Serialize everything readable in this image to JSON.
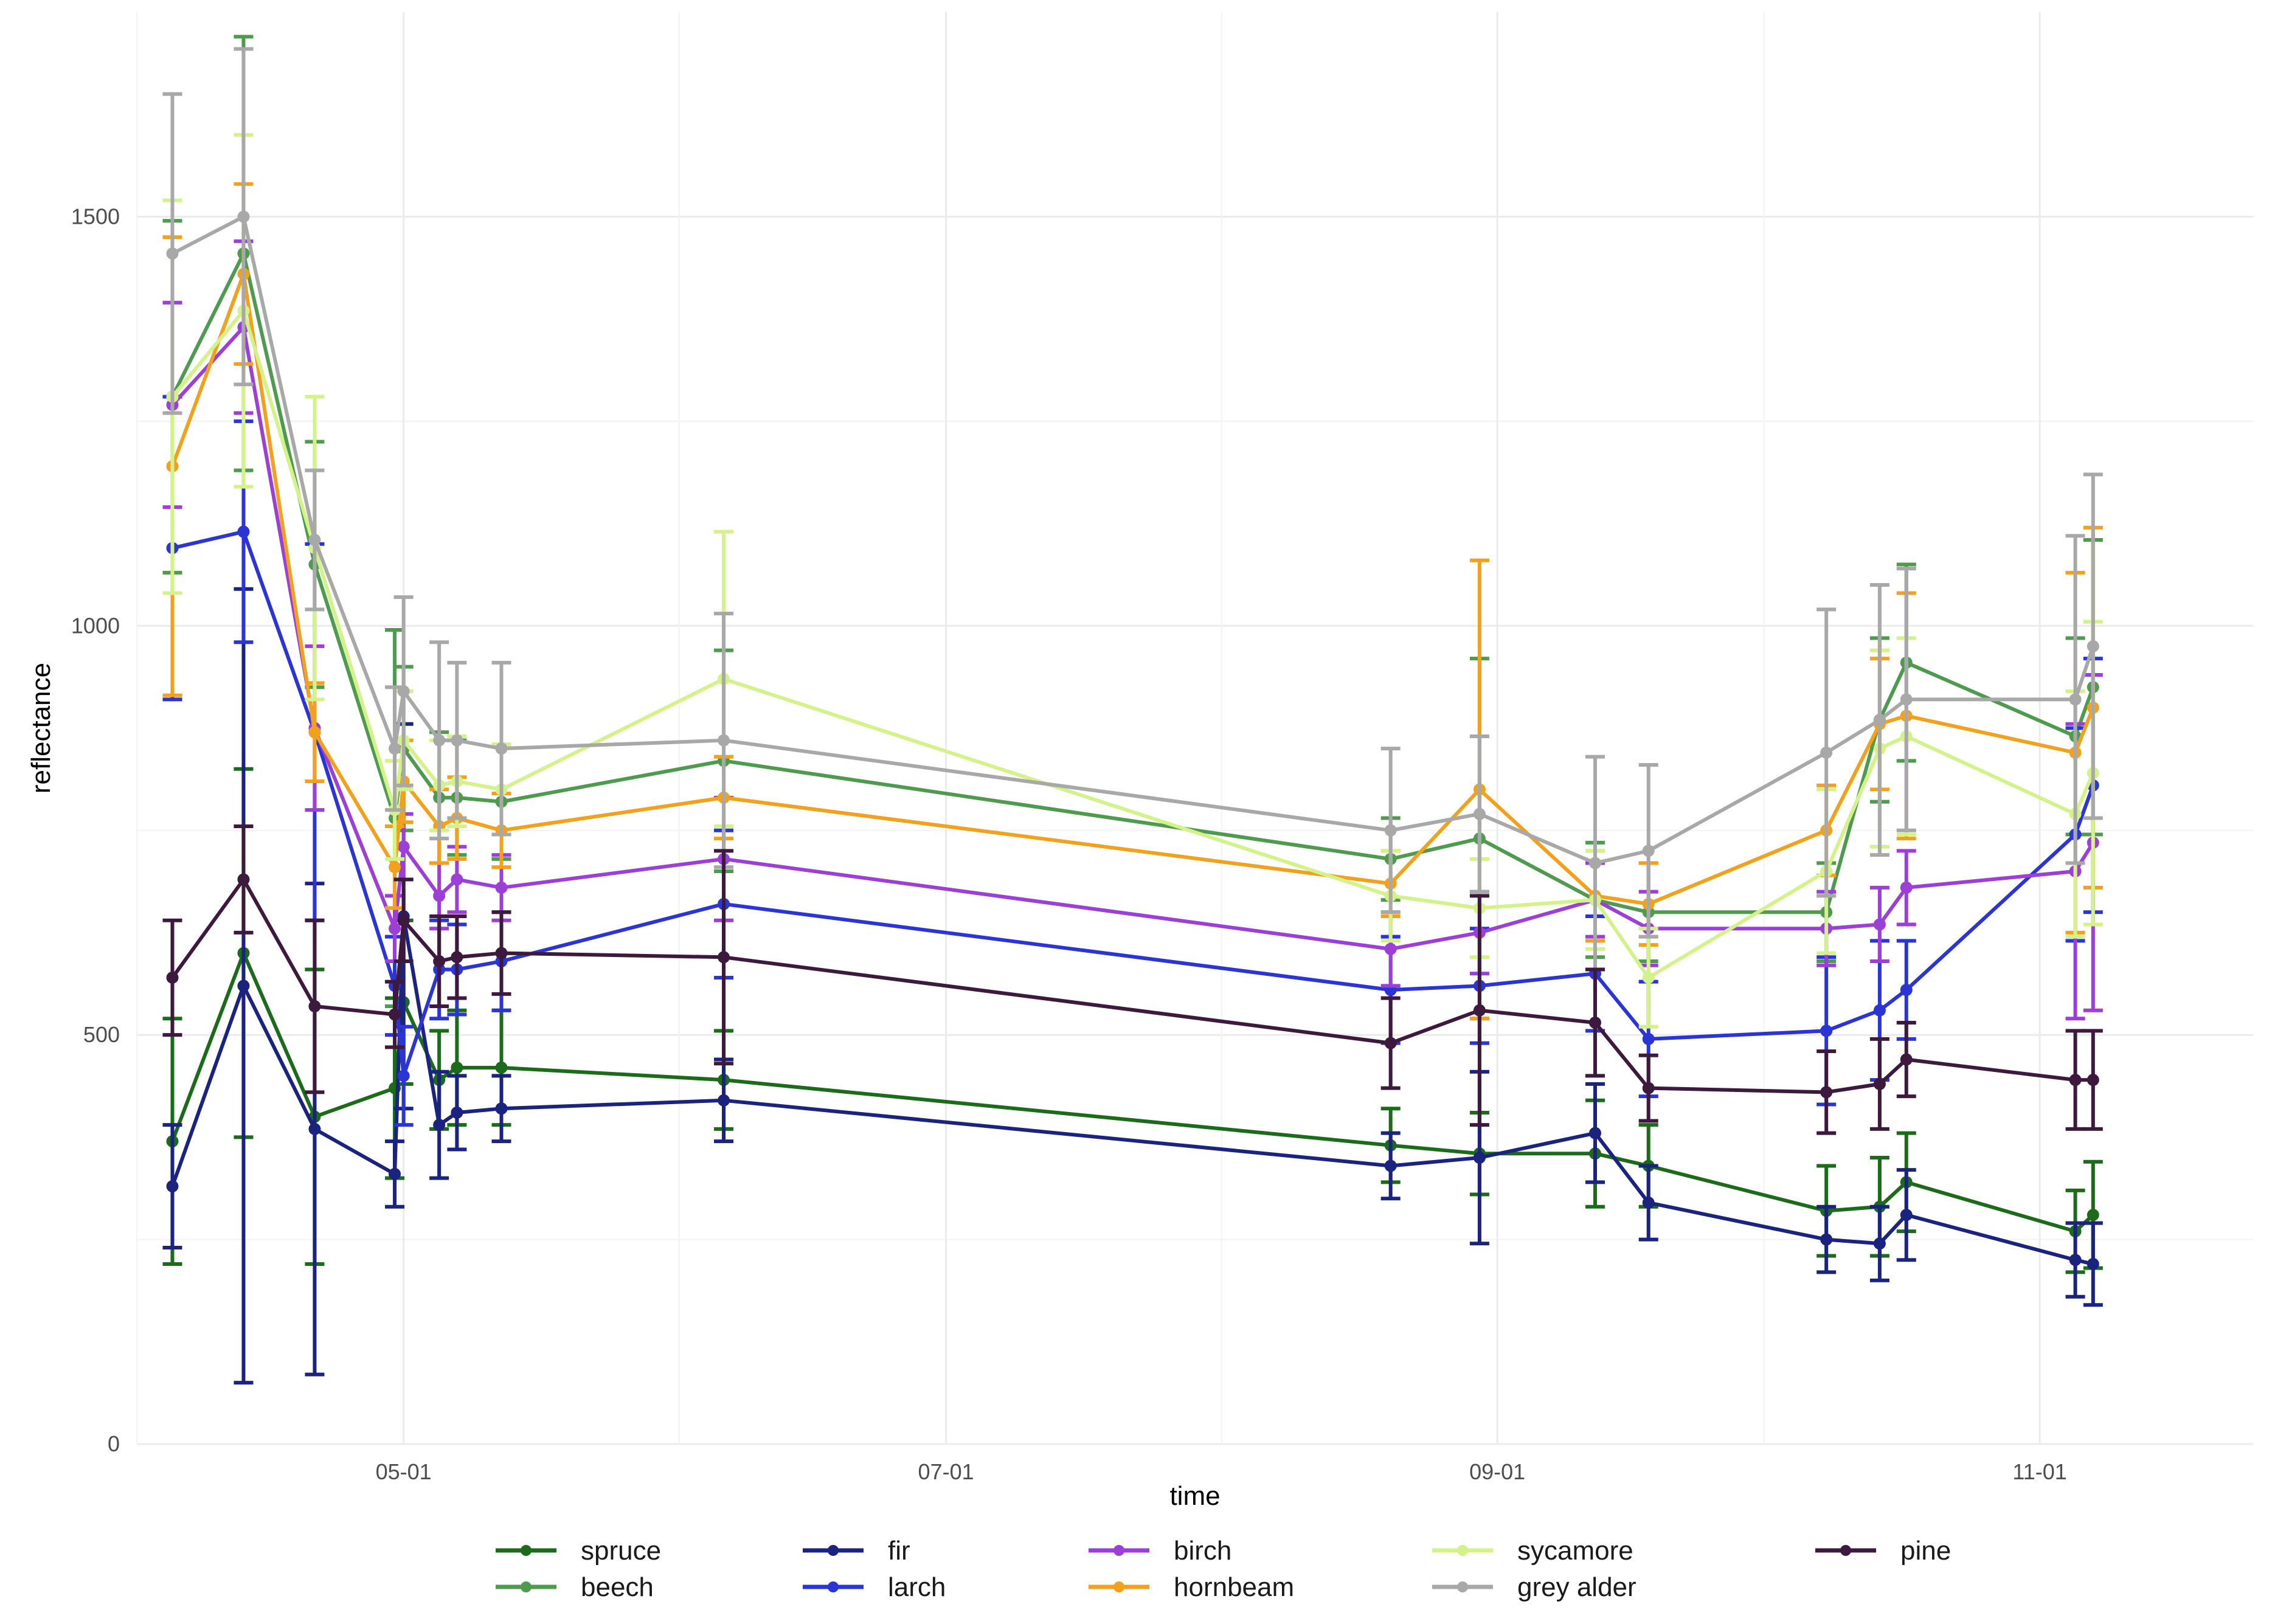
{
  "chart_data": {
    "type": "line",
    "xlabel": "time",
    "ylabel": "reflectance",
    "xlim": [
      "2021-04-01",
      "2021-11-25"
    ],
    "ylim": [
      0,
      1750
    ],
    "x_ticks": [
      "05-01",
      "07-01",
      "09-01",
      "11-01"
    ],
    "y_ticks": [
      0,
      500,
      1000,
      1500
    ],
    "grid": true,
    "legend_position": "bottom",
    "x": [
      "2021-04-05",
      "2021-04-13",
      "2021-04-21",
      "2021-04-30",
      "2021-05-01",
      "2021-05-05",
      "2021-05-07",
      "2021-05-12",
      "2021-06-06",
      "2021-08-20",
      "2021-08-30",
      "2021-09-12",
      "2021-09-18",
      "2021-10-08",
      "2021-10-14",
      "2021-10-17",
      "2021-11-05",
      "2021-11-07"
    ],
    "series": [
      {
        "name": "spruce",
        "color": "#1b6b1b",
        "values": [
          370,
          600,
          400,
          435,
          540,
          445,
          460,
          460,
          445,
          365,
          355,
          355,
          340,
          285,
          290,
          320,
          260,
          280
        ],
        "errors": [
          150,
          225,
          180,
          110,
          100,
          60,
          70,
          70,
          60,
          45,
          50,
          65,
          50,
          55,
          60,
          60,
          50,
          65
        ]
      },
      {
        "name": "beech",
        "color": "#4e9a4e",
        "values": [
          1280,
          1455,
          1075,
          765,
          850,
          790,
          790,
          785,
          835,
          715,
          740,
          665,
          650,
          650,
          885,
          955,
          865,
          925
        ],
        "errors": [
          215,
          265,
          150,
          230,
          100,
          80,
          70,
          70,
          135,
          50,
          220,
          70,
          60,
          60,
          100,
          120,
          120,
          180
        ]
      },
      {
        "name": "fir",
        "color": "#1a237e",
        "values": [
          315,
          560,
          385,
          330,
          645,
          390,
          405,
          410,
          420,
          340,
          350,
          380,
          295,
          250,
          245,
          280,
          225,
          220
        ],
        "errors": [
          75,
          485,
          300,
          40,
          235,
          65,
          45,
          40,
          50,
          40,
          105,
          60,
          45,
          40,
          45,
          55,
          45,
          50
        ]
      },
      {
        "name": "larch",
        "color": "#2b34d4",
        "values": [
          1095,
          1115,
          870,
          560,
          450,
          580,
          580,
          590,
          660,
          555,
          560,
          575,
          495,
          505,
          530,
          555,
          745,
          805
        ],
        "errors": [
          185,
          135,
          230,
          60,
          60,
          60,
          55,
          60,
          90,
          65,
          70,
          70,
          70,
          90,
          85,
          60,
          130,
          155
        ]
      },
      {
        "name": "birch",
        "color": "#9b3fd6",
        "values": [
          1270,
          1365,
          875,
          630,
          730,
          670,
          690,
          680,
          715,
          605,
          625,
          665,
          630,
          630,
          635,
          680,
          700,
          735
        ],
        "errors": [
          125,
          105,
          100,
          40,
          40,
          40,
          40,
          40,
          75,
          45,
          50,
          45,
          45,
          45,
          45,
          45,
          180,
          205
        ]
      },
      {
        "name": "hornbeam",
        "color": "#f2a11d",
        "values": [
          1195,
          1430,
          870,
          705,
          810,
          755,
          765,
          750,
          790,
          685,
          800,
          670,
          660,
          750,
          880,
          890,
          845,
          900
        ],
        "errors": [
          280,
          110,
          60,
          50,
          50,
          45,
          50,
          45,
          50,
          40,
          280,
          55,
          50,
          55,
          80,
          150,
          220,
          220
        ]
      },
      {
        "name": "sycamore",
        "color": "#d4f28a",
        "values": [
          1280,
          1385,
          1095,
          775,
          860,
          805,
          810,
          800,
          935,
          670,
          655,
          665,
          570,
          700,
          850,
          865,
          770,
          820
        ],
        "errors": [
          240,
          215,
          185,
          60,
          60,
          55,
          55,
          55,
          180,
          55,
          60,
          60,
          60,
          100,
          120,
          120,
          150,
          185
        ]
      },
      {
        "name": "grey alder",
        "color": "#a8a8a8",
        "values": [
          1455,
          1500,
          1105,
          850,
          920,
          860,
          860,
          850,
          860,
          750,
          770,
          710,
          725,
          845,
          885,
          910,
          910,
          975
        ],
        "errors": [
          195,
          205,
          85,
          75,
          115,
          120,
          95,
          105,
          155,
          100,
          95,
          130,
          105,
          175,
          165,
          160,
          200,
          210
        ]
      },
      {
        "name": "pine",
        "color": "#3d1a3d",
        "values": [
          570,
          690,
          535,
          525,
          640,
          590,
          595,
          600,
          595,
          490,
          530,
          515,
          435,
          430,
          440,
          470,
          445,
          445
        ],
        "errors": [
          70,
          65,
          105,
          40,
          50,
          55,
          50,
          50,
          130,
          55,
          140,
          65,
          40,
          50,
          55,
          45,
          60,
          60
        ]
      }
    ]
  }
}
